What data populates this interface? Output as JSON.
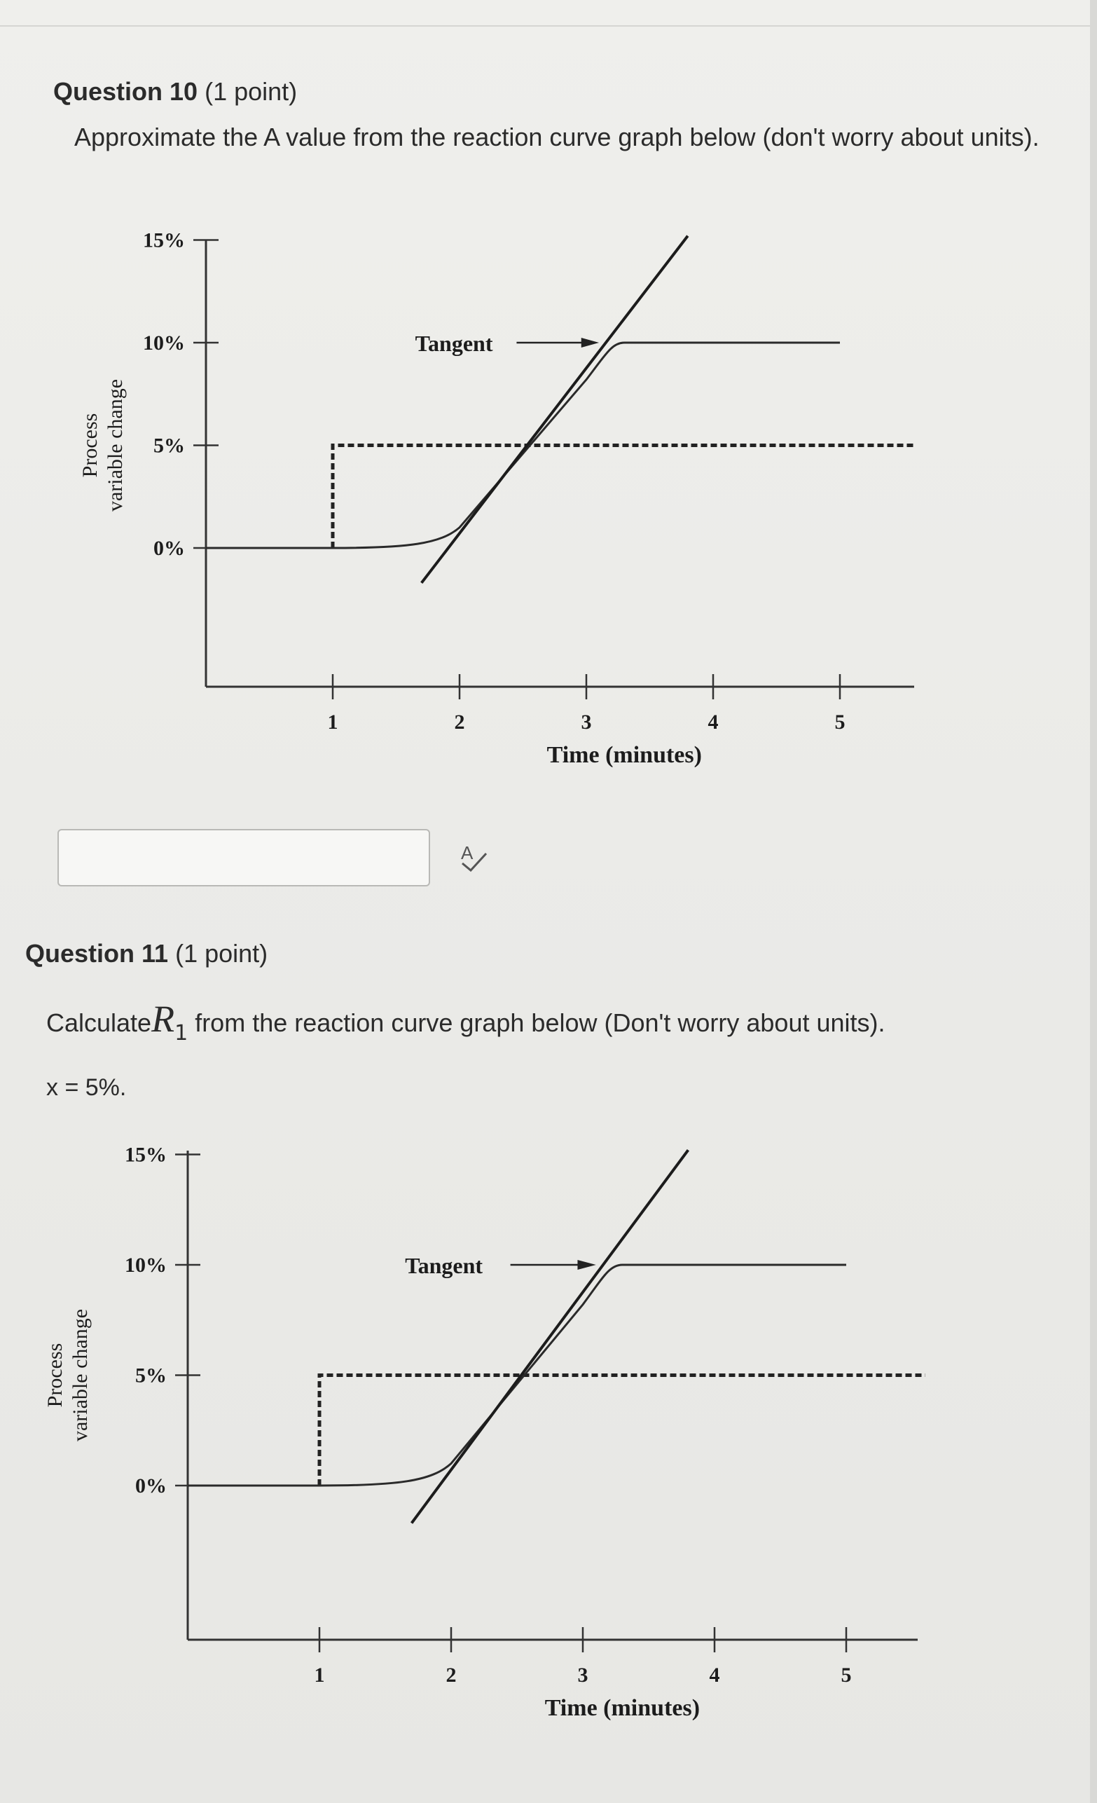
{
  "question10": {
    "title": "Question 10",
    "points": "(1 point)",
    "prompt": "Approximate the A value from the reaction curve graph below (don't worry about units).",
    "answer_value": "",
    "spellcheck_icon": "spellcheck-icon"
  },
  "question11": {
    "title": "Question 11",
    "points": "(1 point)",
    "prompt_before": "Calculate",
    "symbol": "R",
    "symbol_sub": "1",
    "prompt_after": " from the reaction curve graph below (Don't worry about units).",
    "given": "x = 5%."
  },
  "graph": {
    "ylabel_line1": "Process",
    "ylabel_line2": "variable change",
    "xlabel": "Time (minutes)",
    "tangent_label": "Tangent",
    "y_ticks": [
      "0%",
      "5%",
      "10%",
      "15%"
    ],
    "x_ticks": [
      "1",
      "2",
      "3",
      "4",
      "5"
    ]
  },
  "chart_data": [
    {
      "type": "line",
      "xlabel": "Time (minutes)",
      "ylabel": "Process variable change",
      "x_ticks": [
        1,
        2,
        3,
        4,
        5
      ],
      "y_ticks": [
        0,
        5,
        10,
        15
      ],
      "annotations": [
        "Tangent"
      ],
      "series": [
        {
          "name": "",
          "style": "dashed",
          "x": [
            0,
            1,
            1,
            5.6
          ],
          "y": [
            0,
            0,
            5,
            5
          ]
        },
        {
          "name": "",
          "style": "solid",
          "x": [
            0,
            1.0,
            1.7,
            2.0,
            2.4,
            3.0,
            3.3,
            5.0
          ],
          "y": [
            0,
            0,
            0.2,
            1.0,
            3.4,
            8.2,
            10,
            10
          ]
        },
        {
          "name": "",
          "style": "tangent",
          "x": [
            1.7,
            3.8
          ],
          "y": [
            -1.7,
            15.2
          ]
        }
      ]
    },
    {
      "type": "line",
      "xlabel": "Time (minutes)",
      "ylabel": "Process variable change",
      "x_ticks": [
        1,
        2,
        3,
        4,
        5
      ],
      "y_ticks": [
        0,
        5,
        10,
        15
      ],
      "annotations": [
        "Tangent"
      ],
      "series": [
        {
          "name": "",
          "style": "dashed",
          "x": [
            0,
            1,
            1,
            5.6
          ],
          "y": [
            0,
            0,
            5,
            5
          ]
        },
        {
          "name": "",
          "style": "solid",
          "x": [
            0,
            1.0,
            1.7,
            2.0,
            2.4,
            3.0,
            3.3,
            5.0
          ],
          "y": [
            0,
            0,
            0.2,
            1.0,
            3.4,
            8.2,
            10,
            10
          ]
        },
        {
          "name": "",
          "style": "tangent",
          "x": [
            1.7,
            3.8
          ],
          "y": [
            -1.7,
            15.2
          ]
        }
      ]
    }
  ]
}
